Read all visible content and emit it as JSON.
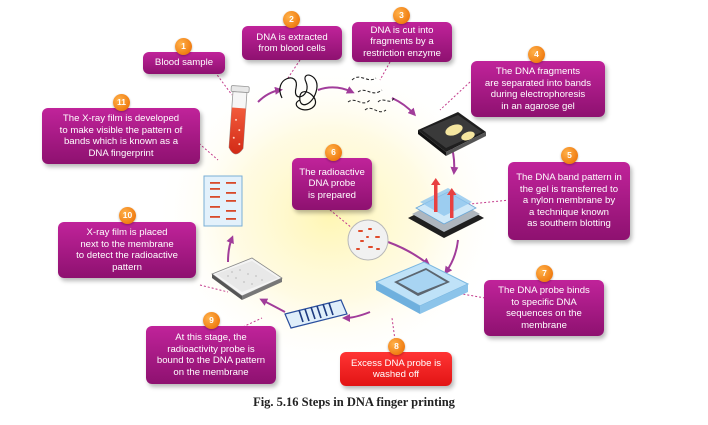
{
  "caption": "Fig. 5.16  Steps in DNA finger printing",
  "steps": [
    {
      "num": "1",
      "text": "Blood sample"
    },
    {
      "num": "2",
      "text": "DNA is extracted\nfrom blood cells"
    },
    {
      "num": "3",
      "text": "DNA is cut into\nfragments by a\nrestriction enzyme"
    },
    {
      "num": "4",
      "text": "The DNA fragments\nare separated into bands\nduring electrophoresis\nin an agarose gel"
    },
    {
      "num": "5",
      "text": "The DNA band pattern in\nthe gel is transferred to\na nylon membrane by\na technique known\nas southern blotting"
    },
    {
      "num": "6",
      "text": "The radioactive\nDNA probe\nis prepared"
    },
    {
      "num": "7",
      "text": "The DNA probe binds\nto specific DNA\nsequences on the\nmembrane"
    },
    {
      "num": "8",
      "text": "Excess DNA probe is\nwashed off"
    },
    {
      "num": "9",
      "text": "At this stage, the\nradioactivity probe is\nbound to the DNA pattern\non the membrane"
    },
    {
      "num": "10",
      "text": "X-ray film is placed\nnext to the membrane\nto detect the radioactive\npattern"
    },
    {
      "num": "11",
      "text": "The X-ray film is developed\nto make visible the pattern of\nbands which is known as a\nDNA fingerprint"
    }
  ],
  "colors": {
    "box": "#a8177f",
    "box_highlight": "#f02020",
    "badge": "#f07d12",
    "glow": "#fff3a0",
    "arrow": "#a13c9a",
    "connector": "#c43b8c",
    "gel": "#79b8e6",
    "band": "#e04a2a"
  },
  "icons": [
    "test-tube-icon",
    "dna-strand-icon",
    "dna-fragments-icon",
    "gel-tray-icon",
    "blotting-stack-icon",
    "probe-dish-icon",
    "wash-tray-icon",
    "membrane-strip-icon",
    "film-membrane-icon",
    "xray-film-icon"
  ]
}
